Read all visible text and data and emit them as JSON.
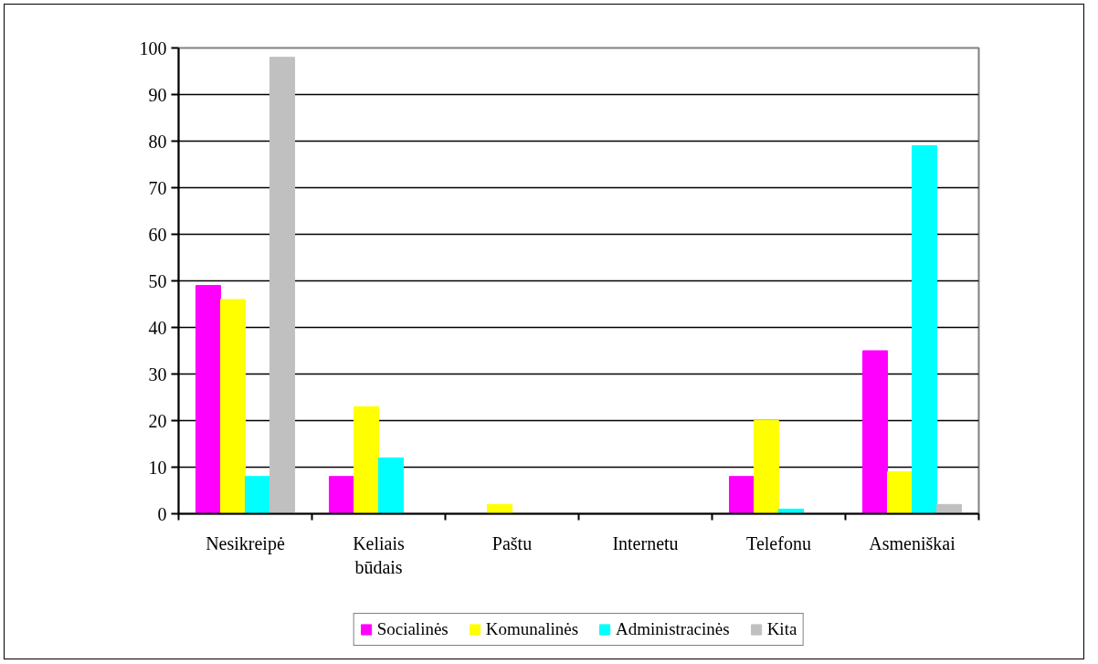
{
  "chart_data": {
    "type": "bar",
    "categories": [
      "Nesikreipė",
      "Keliais būdais",
      "Paštu",
      "Internetu",
      "Telefonu",
      "Asmeniškai"
    ],
    "series": [
      {
        "name": "Socialinės",
        "color": "#ff00ff",
        "values": [
          49,
          8,
          0,
          0,
          8,
          35
        ]
      },
      {
        "name": "Komunalinės",
        "color": "#ffff00",
        "values": [
          46,
          23,
          2,
          0,
          20,
          9
        ]
      },
      {
        "name": "Administracinės",
        "color": "#00ffff",
        "values": [
          8,
          12,
          0,
          0,
          1,
          79
        ]
      },
      {
        "name": "Kita",
        "color": "#c0c0c0",
        "values": [
          98,
          0,
          0,
          0,
          0,
          2
        ]
      }
    ],
    "ylim": [
      0,
      100
    ],
    "yticks": [
      0,
      10,
      20,
      30,
      40,
      50,
      60,
      70,
      80,
      90,
      100
    ],
    "grid": "y",
    "legend": "bottom"
  }
}
